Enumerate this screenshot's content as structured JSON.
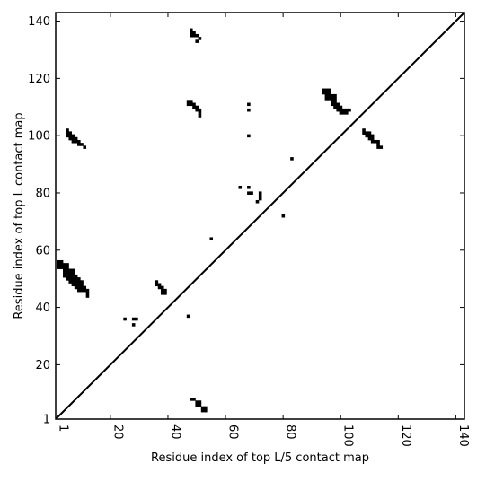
{
  "chart_data": {
    "type": "scatter",
    "title": "",
    "xlabel": "Residue index of top L/5 contact map",
    "ylabel": "Residue index of top L contact map",
    "xlim": [
      1,
      143
    ],
    "ylim": [
      1,
      143
    ],
    "xticks": [
      {
        "value": 1,
        "label": "1"
      },
      {
        "value": 20,
        "label": "20"
      },
      {
        "value": 40,
        "label": "40"
      },
      {
        "value": 60,
        "label": "60"
      },
      {
        "value": 80,
        "label": "80"
      },
      {
        "value": 100,
        "label": "100"
      },
      {
        "value": 120,
        "label": "120"
      },
      {
        "value": 140,
        "label": "140"
      }
    ],
    "yticks": [
      {
        "value": 1,
        "label": "1"
      },
      {
        "value": 20,
        "label": "20"
      },
      {
        "value": 40,
        "label": "40"
      },
      {
        "value": 60,
        "label": "60"
      },
      {
        "value": 80,
        "label": "80"
      },
      {
        "value": 100,
        "label": "100"
      },
      {
        "value": 120,
        "label": "120"
      },
      {
        "value": 140,
        "label": "140"
      }
    ],
    "x_tick_label_rotation": -90,
    "diagonal": {
      "from": [
        1,
        1
      ],
      "to": [
        143,
        143
      ]
    },
    "marker_color": "#000000",
    "grid": false,
    "series": [
      {
        "region": "lower-triangle",
        "points": [
          [
            48,
            8
          ],
          [
            49,
            8
          ],
          [
            50,
            7
          ],
          [
            51,
            7
          ],
          [
            50,
            6
          ],
          [
            51,
            6
          ],
          [
            52,
            5
          ],
          [
            53,
            5
          ],
          [
            52,
            4
          ],
          [
            53,
            4
          ]
        ]
      },
      {
        "region": "upper-triangle",
        "points": [
          [
            2,
            56
          ],
          [
            3,
            56
          ],
          [
            2,
            55
          ],
          [
            3,
            55
          ],
          [
            2,
            54
          ],
          [
            3,
            54
          ],
          [
            4,
            55
          ],
          [
            5,
            55
          ],
          [
            4,
            54
          ],
          [
            5,
            54
          ],
          [
            4,
            53
          ],
          [
            5,
            53
          ],
          [
            6,
            53
          ],
          [
            7,
            53
          ],
          [
            4,
            52
          ],
          [
            5,
            52
          ],
          [
            6,
            52
          ],
          [
            7,
            52
          ],
          [
            4,
            51
          ],
          [
            5,
            51
          ],
          [
            6,
            51
          ],
          [
            7,
            51
          ],
          [
            8,
            51
          ],
          [
            5,
            50
          ],
          [
            6,
            50
          ],
          [
            7,
            50
          ],
          [
            8,
            50
          ],
          [
            9,
            50
          ],
          [
            6,
            49
          ],
          [
            7,
            49
          ],
          [
            8,
            49
          ],
          [
            9,
            49
          ],
          [
            10,
            49
          ],
          [
            7,
            48
          ],
          [
            8,
            48
          ],
          [
            9,
            48
          ],
          [
            10,
            48
          ],
          [
            8,
            47
          ],
          [
            9,
            47
          ],
          [
            10,
            47
          ],
          [
            11,
            47
          ],
          [
            9,
            46
          ],
          [
            10,
            46
          ],
          [
            11,
            46
          ],
          [
            12,
            46
          ],
          [
            12,
            45
          ],
          [
            12,
            44
          ],
          [
            5,
            102
          ],
          [
            5,
            101
          ],
          [
            6,
            101
          ],
          [
            5,
            100
          ],
          [
            6,
            100
          ],
          [
            7,
            100
          ],
          [
            6,
            99
          ],
          [
            7,
            99
          ],
          [
            8,
            99
          ],
          [
            7,
            98
          ],
          [
            8,
            98
          ],
          [
            9,
            98
          ],
          [
            9,
            97
          ],
          [
            10,
            97
          ],
          [
            11,
            96
          ],
          [
            25,
            36
          ],
          [
            28,
            36
          ],
          [
            29,
            36
          ],
          [
            28,
            34
          ],
          [
            36,
            49
          ],
          [
            37,
            48
          ],
          [
            36,
            48
          ],
          [
            37,
            47
          ],
          [
            38,
            47
          ],
          [
            38,
            46
          ],
          [
            39,
            46
          ],
          [
            38,
            45
          ],
          [
            39,
            45
          ],
          [
            47,
            37
          ],
          [
            48,
            137
          ],
          [
            48,
            136
          ],
          [
            49,
            136
          ],
          [
            48,
            135
          ],
          [
            49,
            135
          ],
          [
            50,
            135
          ],
          [
            51,
            134
          ],
          [
            50,
            133
          ],
          [
            47,
            112
          ],
          [
            48,
            112
          ],
          [
            47,
            111
          ],
          [
            48,
            111
          ],
          [
            49,
            111
          ],
          [
            49,
            110
          ],
          [
            50,
            110
          ],
          [
            50,
            109
          ],
          [
            51,
            109
          ],
          [
            51,
            108
          ],
          [
            51,
            107
          ],
          [
            55,
            64
          ],
          [
            65,
            82
          ],
          [
            68,
            82
          ],
          [
            68,
            80
          ],
          [
            69,
            80
          ],
          [
            72,
            80
          ],
          [
            72,
            79
          ],
          [
            72,
            78
          ],
          [
            71,
            77
          ],
          [
            68,
            111
          ],
          [
            68,
            109
          ],
          [
            68,
            100
          ],
          [
            80,
            72
          ],
          [
            83,
            92
          ],
          [
            94,
            116
          ],
          [
            95,
            116
          ],
          [
            96,
            116
          ],
          [
            94,
            115
          ],
          [
            95,
            115
          ],
          [
            96,
            115
          ],
          [
            95,
            114
          ],
          [
            96,
            114
          ],
          [
            97,
            114
          ],
          [
            98,
            114
          ],
          [
            95,
            113
          ],
          [
            96,
            113
          ],
          [
            97,
            113
          ],
          [
            98,
            113
          ],
          [
            97,
            112
          ],
          [
            98,
            112
          ],
          [
            97,
            111
          ],
          [
            98,
            111
          ],
          [
            99,
            111
          ],
          [
            98,
            110
          ],
          [
            99,
            110
          ],
          [
            100,
            110
          ],
          [
            99,
            109
          ],
          [
            100,
            109
          ],
          [
            101,
            109
          ],
          [
            102,
            109
          ],
          [
            103,
            109
          ],
          [
            100,
            108
          ],
          [
            101,
            108
          ],
          [
            102,
            108
          ],
          [
            108,
            102
          ],
          [
            108,
            101
          ],
          [
            109,
            101
          ],
          [
            110,
            101
          ],
          [
            109,
            100
          ],
          [
            110,
            100
          ],
          [
            111,
            100
          ],
          [
            110,
            99
          ],
          [
            111,
            99
          ],
          [
            111,
            98
          ],
          [
            112,
            98
          ],
          [
            113,
            98
          ],
          [
            113,
            97
          ],
          [
            113,
            96
          ],
          [
            114,
            96
          ]
        ]
      }
    ]
  }
}
